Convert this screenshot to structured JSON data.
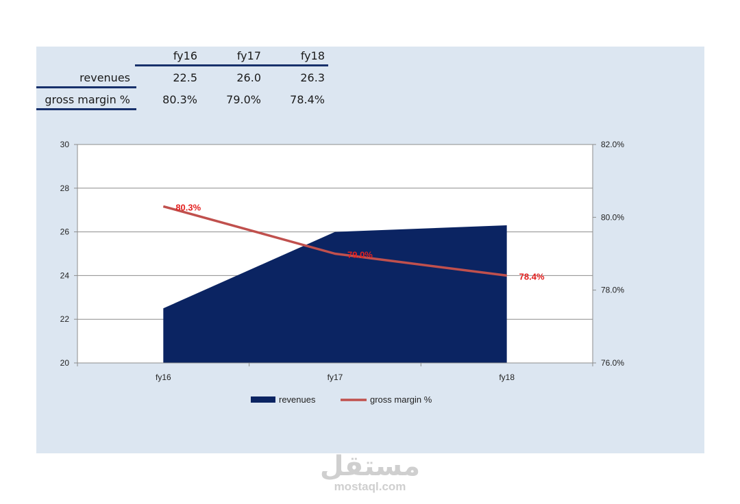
{
  "table": {
    "headers": [
      "fy16",
      "fy17",
      "fy18"
    ],
    "rows": [
      {
        "label": "revenues",
        "values": [
          "22.5",
          "26.0",
          "26.3"
        ]
      },
      {
        "label": "gross margin %",
        "values": [
          "80.3%",
          "79.0%",
          "78.4%"
        ]
      }
    ]
  },
  "chart_data": {
    "type": "area",
    "categories": [
      "fy16",
      "fy17",
      "fy18"
    ],
    "series": [
      {
        "name": "revenues",
        "kind": "area",
        "axis": "left",
        "values": [
          22.5,
          26.0,
          26.3
        ],
        "color": "#0b2462"
      },
      {
        "name": "gross margin %",
        "kind": "line",
        "axis": "right",
        "values": [
          80.3,
          79.0,
          78.4
        ],
        "color": "#c0504d",
        "labels": [
          "80.3%",
          "79.0%",
          "78.4%"
        ],
        "label_color": "#e3201f"
      }
    ],
    "y_left": {
      "min": 20,
      "max": 30,
      "ticks": [
        "20",
        "22",
        "24",
        "26",
        "28",
        "30"
      ]
    },
    "y_right": {
      "min": 76,
      "max": 82,
      "ticks": [
        "76.0%",
        "78.0%",
        "80.0%",
        "82.0%"
      ]
    },
    "grid": true,
    "legend": "bottom",
    "legend_entries": [
      "revenues",
      "gross margin %"
    ]
  },
  "watermark": {
    "arabic": "مستقل",
    "latin": "mostaql.com"
  }
}
